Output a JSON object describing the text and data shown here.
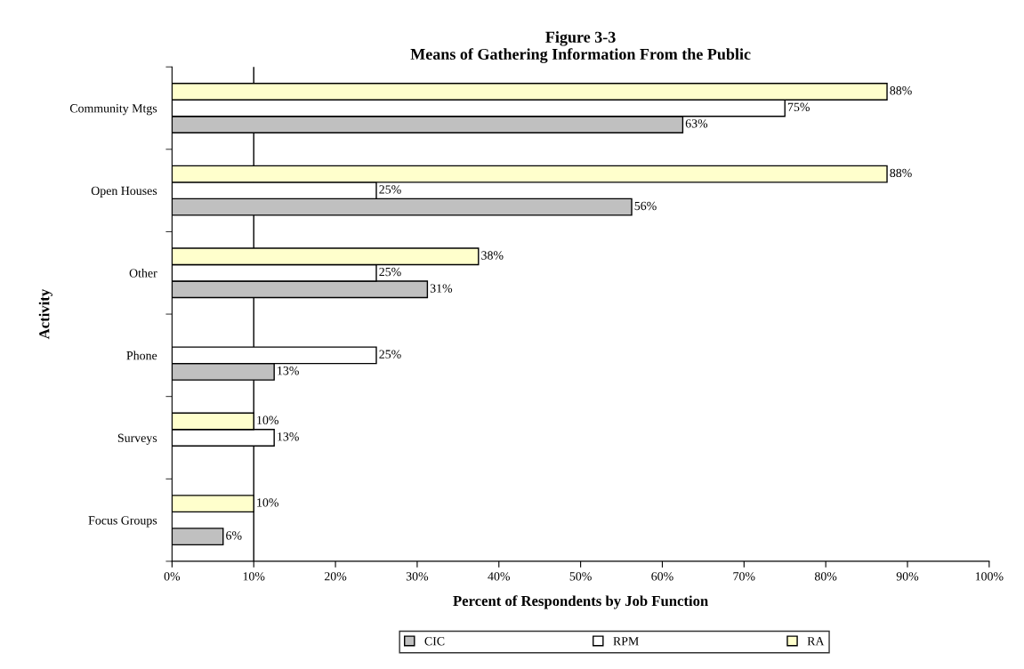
{
  "chart_data": {
    "type": "bar",
    "orientation": "horizontal",
    "title": "Figure 3-3\nMeans of Gathering Information From the Public",
    "xlabel": "Percent of Respondents by Job Function",
    "ylabel": "Activity",
    "categories": [
      "Community Mtgs",
      "Open Houses",
      "Other",
      "Phone",
      "Surveys",
      "Focus Groups"
    ],
    "series": [
      {
        "name": "CIC",
        "color": "#c0c0c0",
        "values": [
          62.5,
          56.25,
          31.25,
          12.5,
          null,
          6.25
        ],
        "value_labels": [
          "63%",
          "56%",
          "31%",
          "13%",
          null,
          "6%"
        ]
      },
      {
        "name": "RPM",
        "color": "#ffffff",
        "values": [
          75,
          25,
          25,
          25,
          12.5,
          null
        ],
        "value_labels": [
          "75%",
          "25%",
          "25%",
          "25%",
          "13%",
          null
        ]
      },
      {
        "name": "RA",
        "color": "#ffffcc",
        "values": [
          87.5,
          87.5,
          37.5,
          null,
          10,
          10
        ],
        "value_labels": [
          "88%",
          "88%",
          "38%",
          null,
          "10%",
          "10%"
        ]
      }
    ],
    "xlim": [
      0,
      100
    ],
    "xticks": [
      {
        "value": 0,
        "label": "0%"
      },
      {
        "value": 10,
        "label": "10%"
      },
      {
        "value": 20,
        "label": "20%"
      },
      {
        "value": 30,
        "label": "30%"
      },
      {
        "value": 40,
        "label": "40%"
      },
      {
        "value": 50,
        "label": "50%"
      },
      {
        "value": 60,
        "label": "60%"
      },
      {
        "value": 70,
        "label": "70%"
      },
      {
        "value": 80,
        "label": "80%"
      },
      {
        "value": 90,
        "label": "90%"
      },
      {
        "value": 100,
        "label": "100%"
      }
    ],
    "ref_lines": [
      {
        "axis": "x",
        "value": 10,
        "color": "#000000"
      }
    ],
    "legend": "bottom",
    "grid": false
  }
}
